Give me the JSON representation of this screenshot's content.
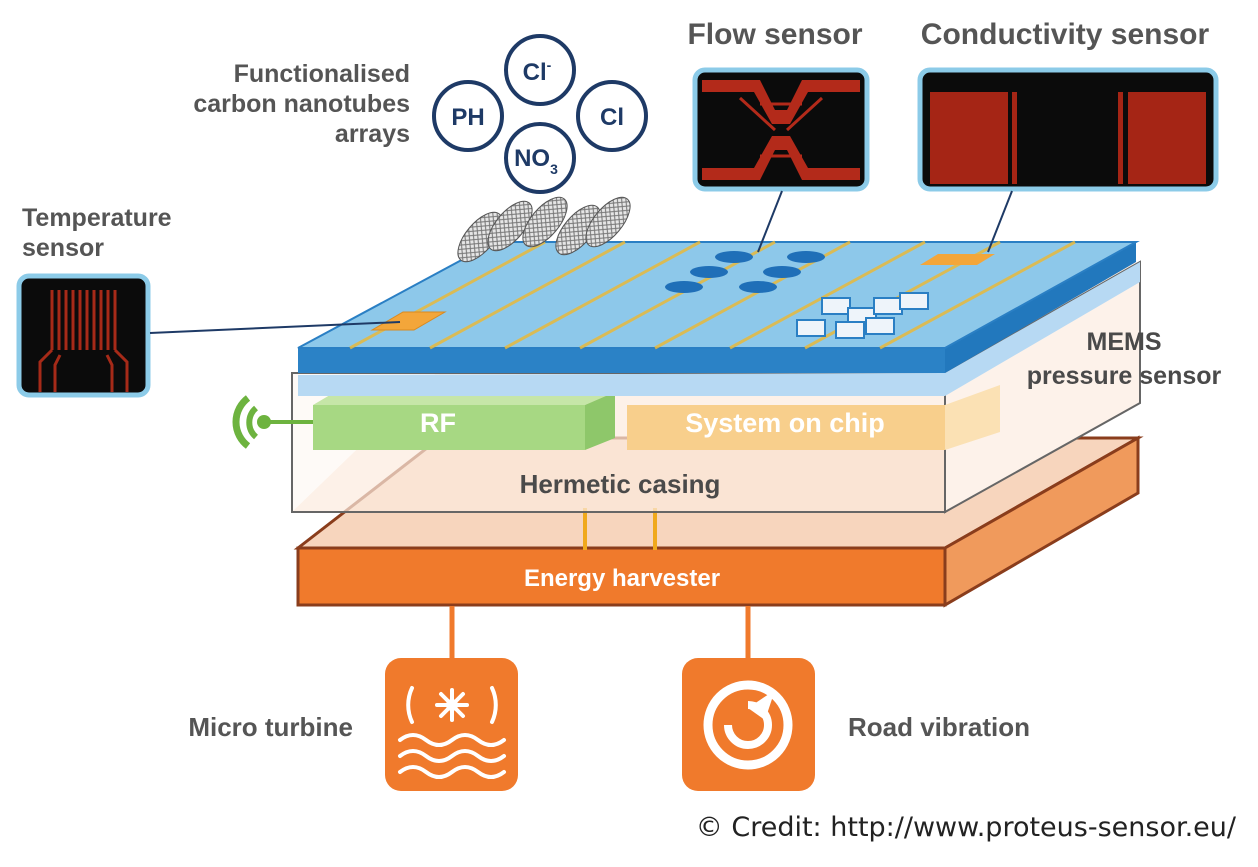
{
  "labels": {
    "flow_sensor": "Flow sensor",
    "conductivity_sensor": "Conductivity sensor",
    "nanotubes_line1": "Functionalised",
    "nanotubes_line2": "carbon nanotubes",
    "nanotubes_line3": "arrays",
    "temperature_line1": "Temperature",
    "temperature_line2": "sensor",
    "mems_line1": "MEMS",
    "mems_line2": "pressure sensor",
    "rf": "RF",
    "system_on_chip": "System on chip",
    "hermetic_casing": "Hermetic casing",
    "energy_harvester": "Energy harvester",
    "micro_turbine": "Micro turbine",
    "road_vibration": "Road vibration"
  },
  "ions": {
    "ph": "PH",
    "cl_minus_base": "Cl",
    "cl_minus_sup": "-",
    "cl": "Cl",
    "no3_base": "NO",
    "no3_sub": "3"
  },
  "credit": "© Credit: http://www.proteus-sensor.eu/",
  "colors": {
    "board_top": "#8dc8ea",
    "board_edge": "#2a7fc4",
    "rf": "#9fd37c",
    "soc": "#f8cf8c",
    "harvester": "#f07a2c",
    "ion_circle": "#1e3a66",
    "sensor_trace": "#b32a1a"
  }
}
